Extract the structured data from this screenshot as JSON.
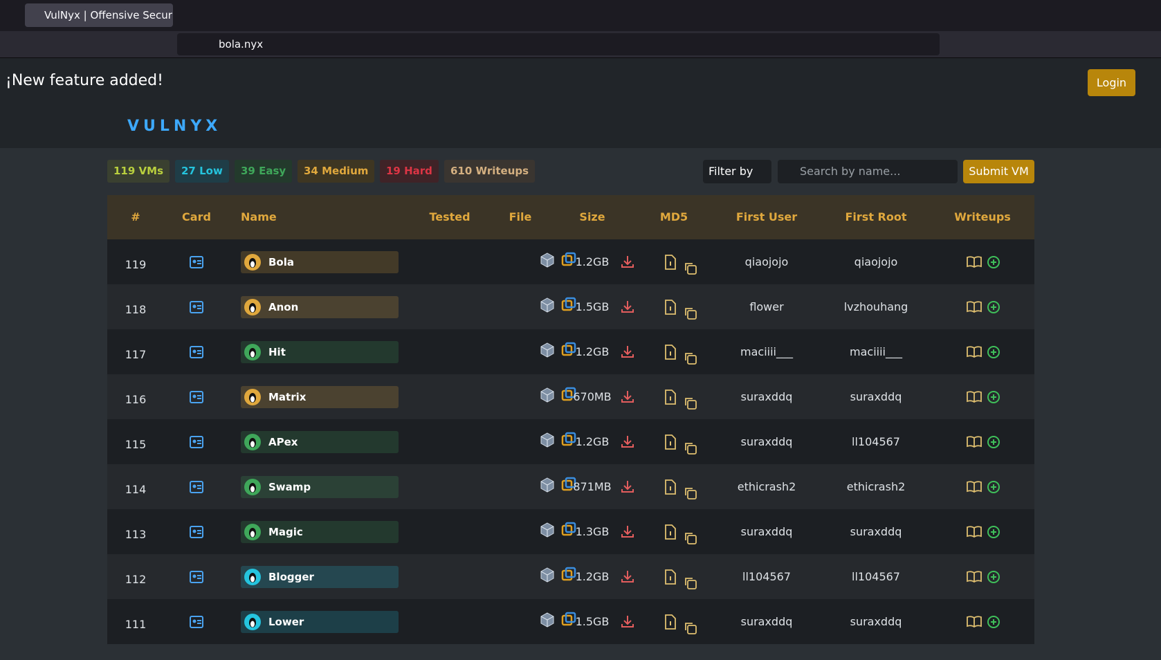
{
  "browser": {
    "tab_title": "VulNyx | Offensive Securi",
    "url": "bola.nyx"
  },
  "banner": {
    "text": "¡New feature added!",
    "login": "Login"
  },
  "header": {
    "logo": "VULNYX"
  },
  "badges": [
    {
      "text": "119 VMs",
      "color": "#b9cf3e",
      "bg": "#3a4030"
    },
    {
      "text": "27 Low",
      "color": "#25c4de",
      "bg": "#1f3d47"
    },
    {
      "text": "39 Easy",
      "color": "#3fa75a",
      "bg": "#233a2c"
    },
    {
      "text": "34 Medium",
      "color": "#e0a83d",
      "bg": "#3e3622"
    },
    {
      "text": "19 Hard",
      "color": "#dc3545",
      "bg": "#3f2327"
    },
    {
      "text": "610 Writeups",
      "color": "#d4b081",
      "bg": "#3a3530"
    }
  ],
  "toolbar": {
    "filter": "Filter by",
    "search_placeholder": "Search by name...",
    "submit": "Submit VM"
  },
  "table": {
    "headers": [
      "#",
      "Card",
      "Name",
      "Tested",
      "File",
      "Size",
      "MD5",
      "First User",
      "First Root",
      "Writeups"
    ],
    "rows": [
      {
        "id": "119",
        "name": "Bola",
        "size": "1.2GB",
        "first_user": "qiaojojo",
        "first_root": "qiaojojo",
        "level_color": "#e0a83d"
      },
      {
        "id": "118",
        "name": "Anon",
        "size": "1.5GB",
        "first_user": "flower",
        "first_root": "lvzhouhang",
        "level_color": "#e0a83d"
      },
      {
        "id": "117",
        "name": "Hit",
        "size": "1.2GB",
        "first_user": "maciiii___",
        "first_root": "maciiii___",
        "level_color": "#3fa75a"
      },
      {
        "id": "116",
        "name": "Matrix",
        "size": "670MB",
        "first_user": "suraxddq",
        "first_root": "suraxddq",
        "level_color": "#e0a83d"
      },
      {
        "id": "115",
        "name": "APex",
        "size": "1.2GB",
        "first_user": "suraxddq",
        "first_root": "ll104567",
        "level_color": "#3fa75a"
      },
      {
        "id": "114",
        "name": "Swamp",
        "size": "871MB",
        "first_user": "ethicrash2",
        "first_root": "ethicrash2",
        "level_color": "#3fa75a"
      },
      {
        "id": "113",
        "name": "Magic",
        "size": "1.3GB",
        "first_user": "suraxddq",
        "first_root": "suraxddq",
        "level_color": "#3fa75a"
      },
      {
        "id": "112",
        "name": "Blogger",
        "size": "1.2GB",
        "first_user": "ll104567",
        "first_root": "ll104567",
        "level_color": "#25c4de"
      },
      {
        "id": "111",
        "name": "Lower",
        "size": "1.5GB",
        "first_user": "suraxddq",
        "first_root": "suraxddq",
        "level_color": "#25c4de"
      }
    ]
  }
}
